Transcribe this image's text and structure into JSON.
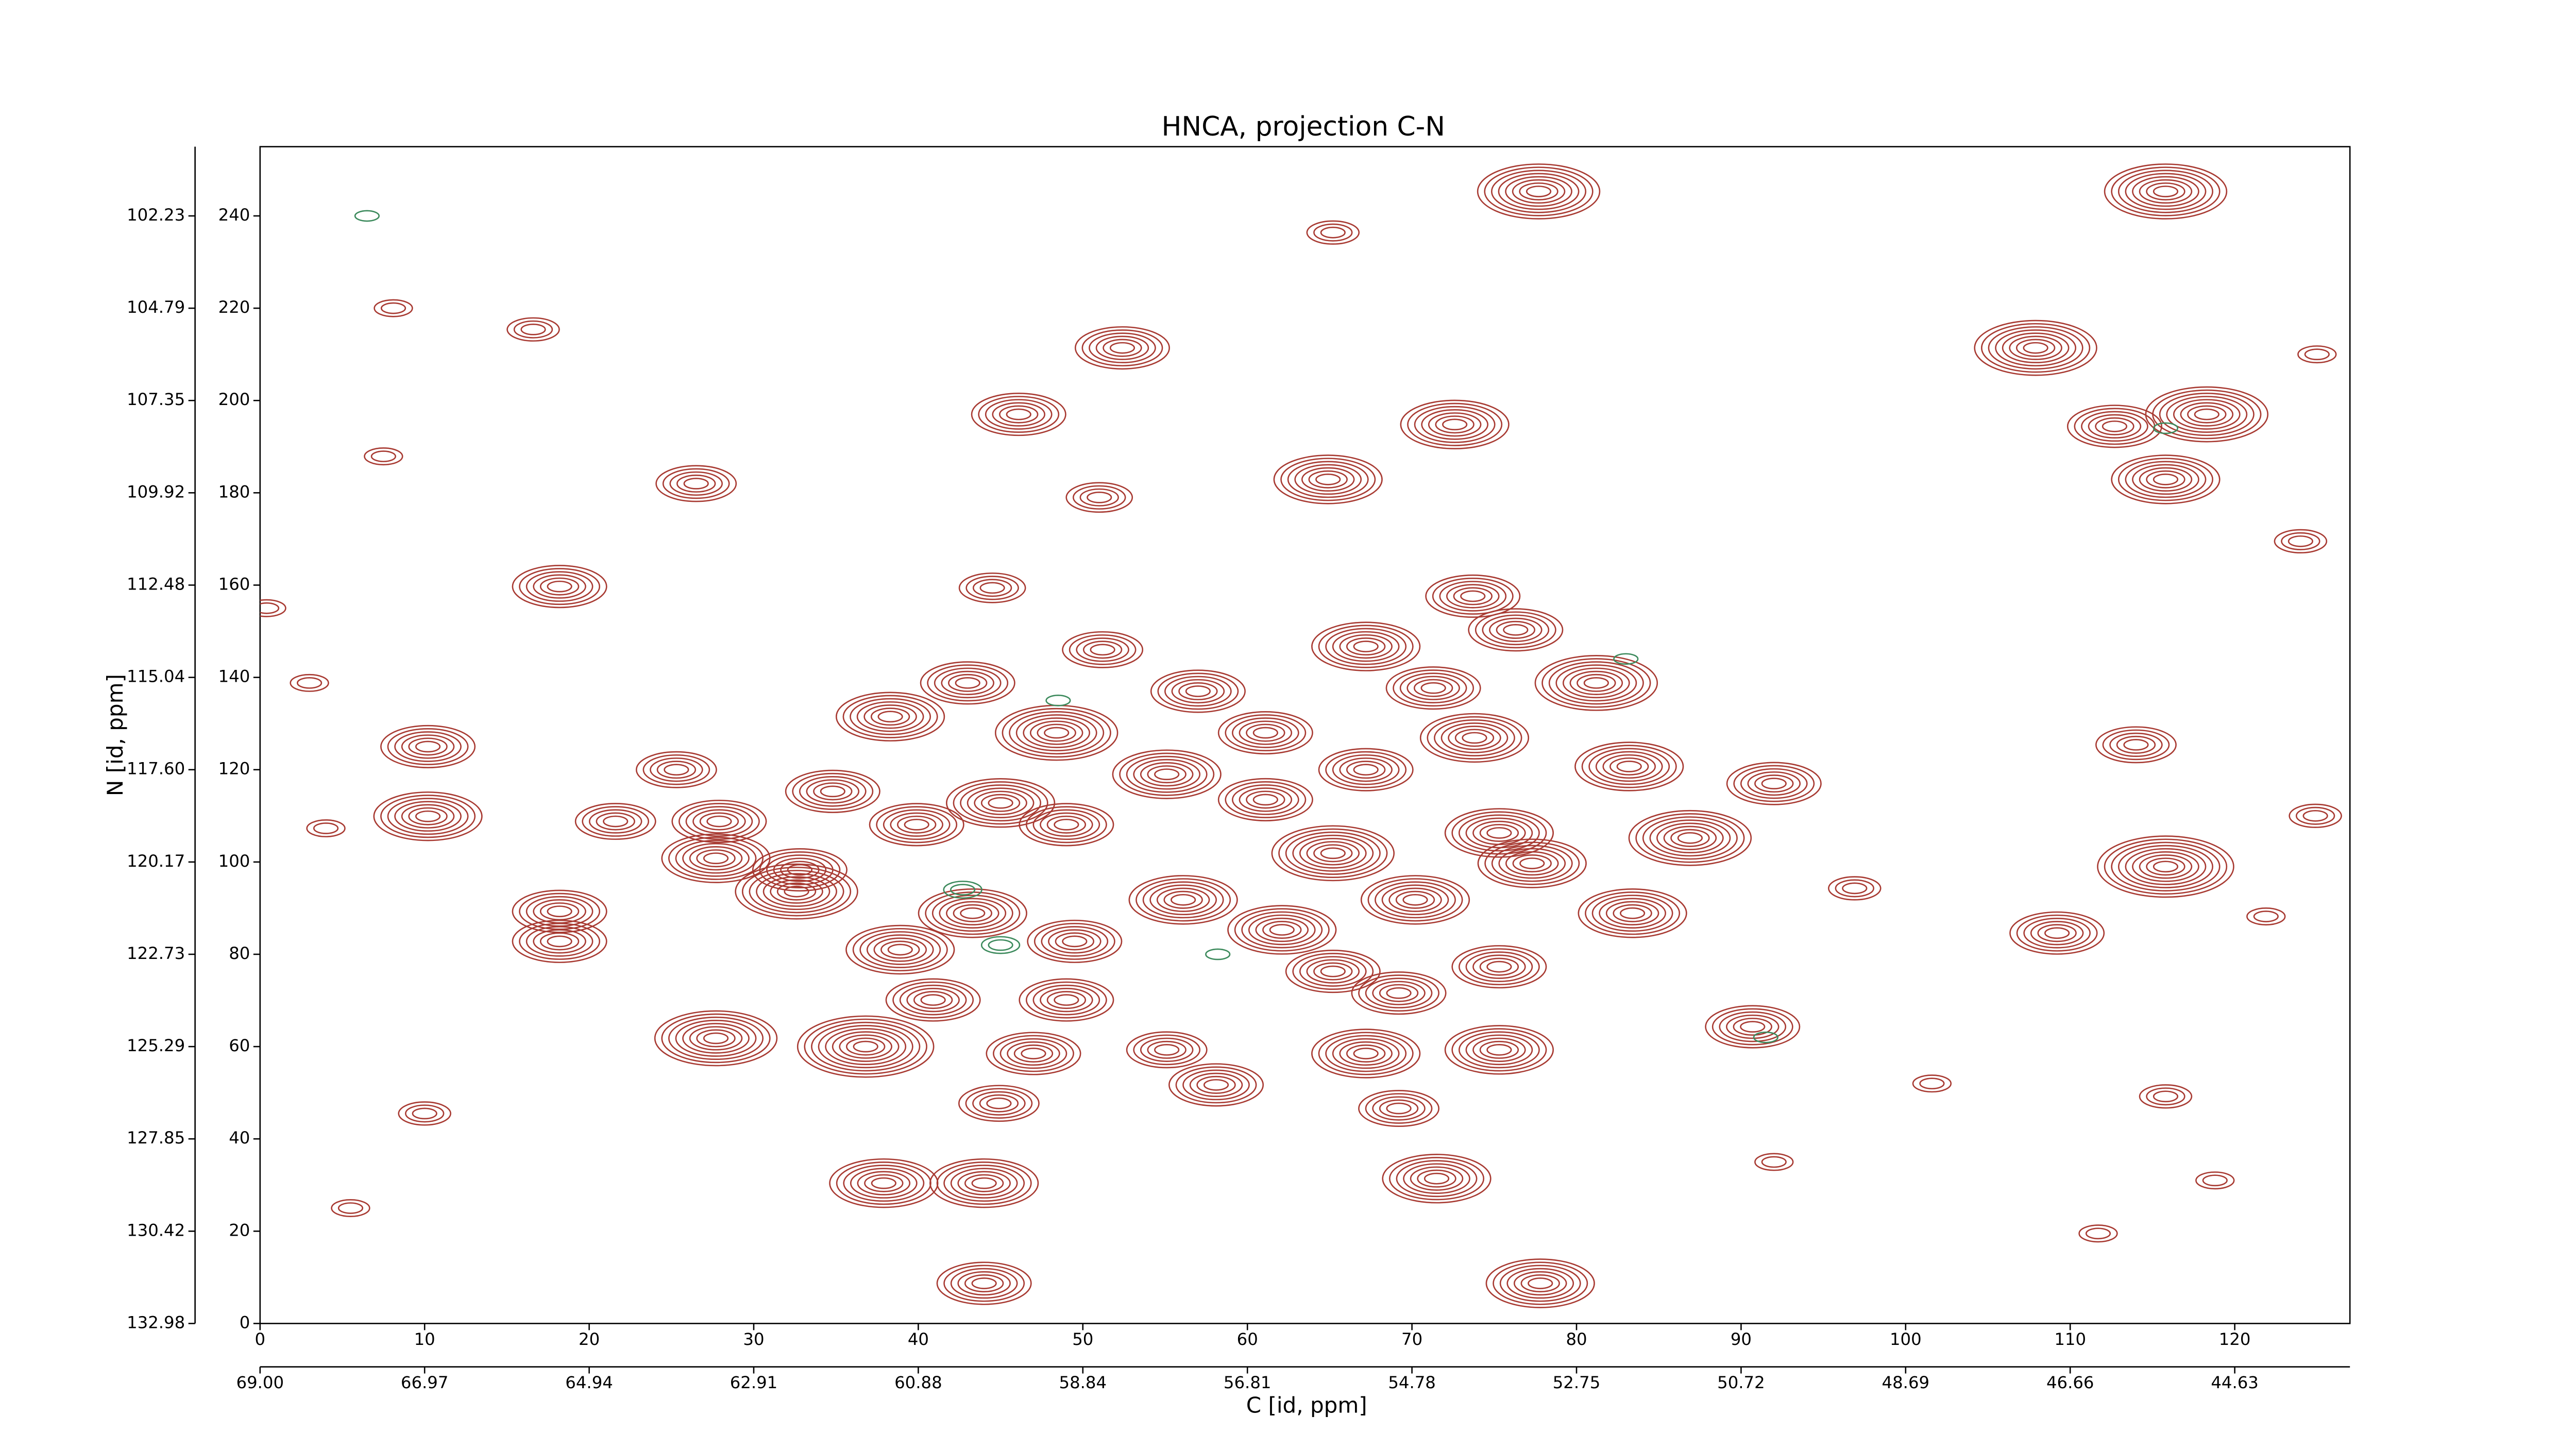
{
  "chart_data": {
    "type": "contour",
    "title": "HNCA, projection C-N",
    "x_label": "C [id, ppm]",
    "y_label": "N [id, ppm]",
    "xlim": [
      0,
      127
    ],
    "ylim": [
      0,
      255
    ],
    "xticks": [
      0,
      10,
      20,
      30,
      40,
      50,
      60,
      70,
      80,
      90,
      100,
      110,
      120
    ],
    "yticks": [
      0,
      20,
      40,
      60,
      80,
      100,
      120,
      140,
      160,
      180,
      200,
      220,
      240
    ],
    "x2ticks": [
      {
        "value": 0,
        "label": "69.00"
      },
      {
        "value": 10,
        "label": "66.97"
      },
      {
        "value": 20,
        "label": "64.94"
      },
      {
        "value": 30,
        "label": "62.91"
      },
      {
        "value": 40,
        "label": "60.88"
      },
      {
        "value": 50,
        "label": "58.84"
      },
      {
        "value": 60,
        "label": "56.81"
      },
      {
        "value": 70,
        "label": "54.78"
      },
      {
        "value": 80,
        "label": "52.75"
      },
      {
        "value": 90,
        "label": "50.72"
      },
      {
        "value": 100,
        "label": "48.69"
      },
      {
        "value": 110,
        "label": "46.66"
      },
      {
        "value": 120,
        "label": "44.63"
      }
    ],
    "y2ticks": [
      {
        "value": 0,
        "label": "132.98"
      },
      {
        "value": 20,
        "label": "130.42"
      },
      {
        "value": 40,
        "label": "127.85"
      },
      {
        "value": 60,
        "label": "125.29"
      },
      {
        "value": 80,
        "label": "122.73"
      },
      {
        "value": 100,
        "label": "120.17"
      },
      {
        "value": 120,
        "label": "117.60"
      },
      {
        "value": 140,
        "label": "115.04"
      },
      {
        "value": 160,
        "label": "112.48"
      },
      {
        "value": 180,
        "label": "109.92"
      },
      {
        "value": 200,
        "label": "107.35"
      },
      {
        "value": 220,
        "label": "104.79"
      },
      {
        "value": 240,
        "label": "102.23"
      }
    ],
    "series": [
      {
        "color": "#a83a32",
        "x": [
          77.7,
          115.8,
          52.4,
          107.9,
          46.1,
          72.6,
          112.7,
          118.3,
          64.9,
          115.8,
          26.5,
          51,
          18.2,
          44.5,
          73.7,
          67.2,
          76.3,
          51.2,
          43,
          57,
          71.3,
          81.2,
          38.3,
          48.4,
          61.1,
          73.8,
          10.2,
          10.2,
          25.3,
          55.1,
          67.2,
          83.2,
          92,
          114,
          34.8,
          45,
          61.1,
          21.6,
          27.9,
          39.9,
          49,
          75.3,
          86.9,
          27.7,
          32.8,
          65.2,
          77.3,
          115.8,
          18.2,
          18.2,
          32.6,
          43.3,
          56.1,
          70.2,
          83.4,
          62.1,
          38.9,
          49.5,
          109.2,
          65.2,
          75.3,
          40.9,
          49,
          69.2,
          90.7,
          27.7,
          36.8,
          47,
          55.1,
          67.2,
          75.3,
          58.1,
          69.2,
          44.9,
          37.9,
          44,
          71.5,
          44,
          77.8,
          65.2,
          8.1,
          16.6,
          125,
          7.5,
          124,
          0.4,
          3,
          124.9,
          4,
          96.9,
          121.9,
          10,
          101.6,
          115.8,
          5.5,
          92,
          118.8,
          111.7
        ],
        "y": [
          245.3,
          245.3,
          211.4,
          211.4,
          197,
          194.8,
          194.4,
          197,
          182.9,
          182.9,
          182,
          179,
          159.7,
          159.4,
          157.6,
          146.7,
          150.3,
          146,
          138.8,
          137,
          137.7,
          138.8,
          131.5,
          128,
          128,
          126.9,
          125,
          109.9,
          120,
          119,
          120,
          120.7,
          117,
          125.4,
          115.3,
          112.8,
          113.5,
          108.8,
          108.8,
          108.1,
          108.1,
          106.3,
          105.2,
          100.8,
          98.3,
          101.9,
          99.7,
          99,
          89.3,
          82.8,
          93.6,
          88.9,
          91.8,
          91.8,
          88.9,
          85.3,
          81,
          82.8,
          84.6,
          76.3,
          77.3,
          70.1,
          70.1,
          71.6,
          64.3,
          61.8,
          60,
          58.5,
          59.3,
          58.5,
          59.3,
          51.7,
          46.6,
          47.7,
          30.4,
          30.4,
          31.4,
          8.7,
          8.7,
          236.4,
          220,
          215.4,
          210,
          187.9,
          169.5,
          155,
          138.8,
          110,
          107.3,
          94.3,
          88.2,
          45.5,
          52,
          49.2,
          25,
          35,
          31,
          19.5
        ],
        "levels": [
          8,
          8,
          6,
          8,
          6,
          7,
          6,
          8,
          7,
          7,
          5,
          4,
          6,
          4,
          6,
          7,
          6,
          5,
          6,
          6,
          6,
          8,
          7,
          8,
          6,
          7,
          6,
          7,
          5,
          7,
          6,
          7,
          6,
          5,
          6,
          7,
          6,
          5,
          6,
          6,
          6,
          7,
          8,
          7,
          6,
          8,
          7,
          9,
          6,
          6,
          8,
          7,
          7,
          7,
          7,
          7,
          7,
          6,
          6,
          6,
          6,
          6,
          6,
          6,
          6,
          8,
          9,
          6,
          5,
          7,
          7,
          6,
          5,
          5,
          7,
          7,
          7,
          6,
          7,
          3,
          2,
          3,
          2,
          2,
          3,
          2,
          2,
          3,
          2,
          3,
          2,
          3,
          2,
          3,
          2,
          2,
          2,
          2
        ]
      },
      {
        "color": "#3c8a5c",
        "x": [
          6.5,
          42.7,
          45,
          91.5,
          83,
          115.8,
          58.2,
          48.5
        ],
        "y": [
          240,
          94,
          82,
          62,
          144,
          194,
          80,
          135
        ],
        "levels": [
          1,
          2,
          2,
          1,
          1,
          1,
          1,
          1
        ]
      }
    ]
  }
}
